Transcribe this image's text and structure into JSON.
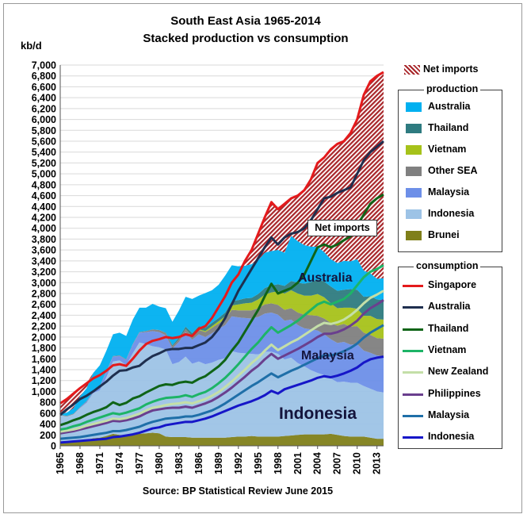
{
  "chart_data": {
    "type": "area",
    "title": "South East Asia 1965-2014",
    "subtitle": "Stacked production vs consumption",
    "ylabel": "kb/d",
    "source": "Source: BP Statistical Review  June 2015",
    "ylim": [
      0,
      7000
    ],
    "yticks": [
      "0",
      "200",
      "400",
      "600",
      "800",
      "1,000",
      "1,200",
      "1,400",
      "1,600",
      "1,800",
      "2,000",
      "2,200",
      "2,400",
      "2,600",
      "2,800",
      "3,000",
      "3,200",
      "3,400",
      "3,600",
      "3,800",
      "4,000",
      "4,200",
      "4,400",
      "4,600",
      "4,800",
      "5,000",
      "5,200",
      "5,400",
      "5,600",
      "5,800",
      "6,000",
      "6,200",
      "6,400",
      "6,600",
      "6,800",
      "7,000"
    ],
    "xticks": [
      "1965",
      "1968",
      "1971",
      "1974",
      "1977",
      "1980",
      "1983",
      "1986",
      "1989",
      "1992",
      "1995",
      "1998",
      "2001",
      "2004",
      "2007",
      "2010",
      "2013"
    ],
    "x": [
      1965,
      1966,
      1967,
      1968,
      1969,
      1970,
      1971,
      1972,
      1973,
      1974,
      1975,
      1976,
      1977,
      1978,
      1979,
      1980,
      1981,
      1982,
      1983,
      1984,
      1985,
      1986,
      1987,
      1988,
      1989,
      1990,
      1991,
      1992,
      1993,
      1994,
      1995,
      1996,
      1997,
      1998,
      1999,
      2000,
      2001,
      2002,
      2003,
      2004,
      2005,
      2006,
      2007,
      2008,
      2009,
      2010,
      2011,
      2012,
      2013,
      2014
    ],
    "net_imports_label": "Net imports",
    "net_imports_color": "#c0504d",
    "production_heading": "production",
    "consumption_heading": "consumption",
    "area_labels": {
      "australia": "Australia",
      "malaysia": "Malaysia",
      "indonesia": "Indonesia"
    },
    "production": [
      {
        "name": "Brunei",
        "color": "#7f7f1a",
        "values": [
          80,
          80,
          80,
          90,
          110,
          140,
          150,
          180,
          220,
          200,
          180,
          200,
          220,
          230,
          240,
          230,
          170,
          160,
          160,
          160,
          150,
          150,
          150,
          150,
          150,
          150,
          160,
          170,
          170,
          180,
          170,
          170,
          170,
          170,
          180,
          190,
          200,
          210,
          210,
          210,
          210,
          220,
          200,
          180,
          170,
          170,
          170,
          150,
          130,
          130
        ]
      },
      {
        "name": "Indonesia",
        "color": "#9dc3e6",
        "values": [
          480,
          460,
          500,
          600,
          680,
          830,
          870,
          1080,
          1330,
          1370,
          1300,
          1500,
          1680,
          1640,
          1590,
          1580,
          1600,
          1340,
          1380,
          1480,
          1360,
          1400,
          1350,
          1380,
          1430,
          1460,
          1580,
          1540,
          1530,
          1510,
          1510,
          1560,
          1560,
          1520,
          1410,
          1430,
          1320,
          1250,
          1180,
          1130,
          1090,
          1020,
          970,
          1000,
          990,
          990,
          930,
          900,
          870,
          850
        ]
      },
      {
        "name": "Malaysia",
        "color": "#6d8fe8",
        "values": [
          0,
          0,
          0,
          10,
          20,
          20,
          70,
          100,
          90,
          80,
          100,
          160,
          180,
          220,
          280,
          280,
          260,
          290,
          370,
          450,
          440,
          500,
          500,
          540,
          570,
          610,
          640,
          650,
          650,
          650,
          690,
          700,
          720,
          720,
          710,
          700,
          700,
          700,
          750,
          780,
          750,
          720,
          720,
          730,
          700,
          710,
          650,
          660,
          660,
          670
        ]
      },
      {
        "name": "Other SEA",
        "color": "#808080",
        "values": [
          10,
          10,
          10,
          10,
          10,
          10,
          10,
          10,
          10,
          10,
          10,
          10,
          10,
          20,
          30,
          40,
          40,
          40,
          50,
          60,
          70,
          80,
          90,
          100,
          100,
          110,
          120,
          130,
          140,
          150,
          160,
          170,
          170,
          180,
          200,
          210,
          230,
          250,
          260,
          270,
          290,
          300,
          320,
          330,
          330,
          330,
          330,
          330,
          320,
          320
        ]
      },
      {
        "name": "Vietnam",
        "color": "#a6c21a",
        "values": [
          0,
          0,
          0,
          0,
          0,
          0,
          0,
          0,
          0,
          0,
          0,
          0,
          0,
          0,
          0,
          0,
          0,
          0,
          0,
          0,
          0,
          10,
          20,
          30,
          40,
          50,
          80,
          110,
          130,
          140,
          160,
          180,
          200,
          250,
          300,
          330,
          350,
          350,
          360,
          400,
          390,
          360,
          320,
          300,
          350,
          320,
          310,
          350,
          350,
          350
        ]
      },
      {
        "name": "Thailand",
        "color": "#2e7b80",
        "values": [
          0,
          0,
          0,
          0,
          0,
          0,
          0,
          0,
          0,
          0,
          0,
          0,
          0,
          0,
          0,
          0,
          10,
          20,
          30,
          40,
          50,
          60,
          60,
          60,
          60,
          70,
          80,
          80,
          90,
          90,
          100,
          120,
          130,
          130,
          140,
          170,
          200,
          220,
          250,
          270,
          290,
          310,
          320,
          330,
          340,
          350,
          350,
          360,
          360,
          360
        ]
      },
      {
        "name": "Australia",
        "color": "#00b0f0",
        "values": [
          10,
          60,
          100,
          200,
          240,
          340,
          380,
          380,
          400,
          420,
          430,
          450,
          450,
          430,
          470,
          430,
          450,
          430,
          500,
          550,
          630,
          560,
          640,
          600,
          610,
          680,
          660,
          620,
          600,
          620,
          620,
          650,
          630,
          630,
          610,
          830,
          760,
          710,
          650,
          600,
          540,
          500,
          510,
          530,
          510,
          560,
          480,
          420,
          380,
          400
        ]
      }
    ],
    "consumption": [
      {
        "name": "Singapore",
        "color": "#e41a1c",
        "values": [
          780,
          860,
          960,
          1060,
          1150,
          1240,
          1300,
          1380,
          1480,
          1500,
          1470,
          1600,
          1750,
          1870,
          1930,
          1960,
          2000,
          1980,
          2000,
          2050,
          2020,
          2150,
          2200,
          2350,
          2550,
          2750,
          3000,
          3150,
          3400,
          3600,
          3900,
          4200,
          4480,
          4350,
          4450,
          4550,
          4600,
          4700,
          4900,
          5200,
          5300,
          5450,
          5550,
          5600,
          5750,
          6000,
          6450,
          6700,
          6800,
          6870
        ]
      },
      {
        "name": "Australia",
        "color": "#1f2f4f",
        "values": [
          570,
          670,
          760,
          860,
          920,
          1000,
          1090,
          1180,
          1290,
          1380,
          1390,
          1440,
          1470,
          1570,
          1650,
          1700,
          1760,
          1780,
          1780,
          1800,
          1800,
          1850,
          1900,
          2000,
          2150,
          2350,
          2600,
          2850,
          3050,
          3250,
          3450,
          3650,
          3830,
          3700,
          3830,
          3900,
          3930,
          4000,
          4150,
          4350,
          4550,
          4580,
          4650,
          4700,
          4750,
          5000,
          5250,
          5400,
          5500,
          5600
        ]
      },
      {
        "name": "Thailand",
        "color": "#0f6417",
        "values": [
          380,
          420,
          470,
          510,
          570,
          620,
          660,
          710,
          800,
          750,
          790,
          870,
          910,
          980,
          1040,
          1100,
          1130,
          1120,
          1160,
          1180,
          1160,
          1230,
          1280,
          1370,
          1460,
          1580,
          1750,
          1900,
          2100,
          2300,
          2500,
          2750,
          2980,
          2800,
          2850,
          2900,
          3000,
          3150,
          3400,
          3650,
          3700,
          3650,
          3700,
          3780,
          3850,
          4050,
          4250,
          4450,
          4550,
          4620
        ]
      },
      {
        "name": "Vietnam",
        "color": "#1db467",
        "values": [
          300,
          320,
          360,
          390,
          440,
          480,
          520,
          560,
          600,
          580,
          610,
          650,
          690,
          760,
          810,
          850,
          880,
          890,
          900,
          930,
          900,
          950,
          990,
          1060,
          1150,
          1250,
          1370,
          1500,
          1640,
          1780,
          1900,
          2050,
          2180,
          2080,
          2150,
          2220,
          2300,
          2400,
          2500,
          2600,
          2650,
          2600,
          2650,
          2700,
          2800,
          2950,
          3100,
          3200,
          3250,
          3320
        ]
      },
      {
        "name": "New Zealand",
        "color": "#c4dfa8",
        "values": [
          260,
          280,
          300,
          330,
          370,
          400,
          430,
          460,
          500,
          490,
          510,
          550,
          590,
          650,
          700,
          720,
          750,
          770,
          780,
          800,
          780,
          820,
          860,
          920,
          990,
          1080,
          1180,
          1290,
          1400,
          1520,
          1620,
          1750,
          1860,
          1760,
          1830,
          1900,
          1960,
          2040,
          2120,
          2200,
          2260,
          2240,
          2270,
          2320,
          2400,
          2500,
          2620,
          2720,
          2780,
          2850
        ]
      },
      {
        "name": "Philippines",
        "color": "#6a3f8e",
        "values": [
          230,
          250,
          270,
          300,
          330,
          360,
          390,
          420,
          460,
          450,
          470,
          500,
          540,
          600,
          650,
          670,
          690,
          700,
          700,
          720,
          700,
          740,
          780,
          830,
          900,
          980,
          1070,
          1170,
          1270,
          1380,
          1470,
          1590,
          1690,
          1600,
          1660,
          1720,
          1780,
          1850,
          1920,
          2000,
          2060,
          2060,
          2090,
          2140,
          2210,
          2300,
          2430,
          2530,
          2600,
          2680
        ]
      },
      {
        "name": "Malaysia",
        "color": "#1f6fa8",
        "values": [
          130,
          140,
          150,
          160,
          180,
          200,
          220,
          240,
          270,
          270,
          290,
          320,
          350,
          400,
          440,
          470,
          500,
          510,
          520,
          540,
          540,
          570,
          610,
          650,
          710,
          780,
          860,
          940,
          1020,
          1100,
          1170,
          1250,
          1330,
          1260,
          1320,
          1380,
          1430,
          1490,
          1550,
          1610,
          1660,
          1660,
          1690,
          1740,
          1800,
          1880,
          1990,
          2080,
          2150,
          2220
        ]
      },
      {
        "name": "Indonesia",
        "color": "#1616c8",
        "values": [
          60,
          70,
          80,
          90,
          100,
          110,
          120,
          130,
          160,
          170,
          190,
          210,
          240,
          280,
          320,
          340,
          380,
          400,
          420,
          440,
          440,
          470,
          500,
          540,
          590,
          640,
          690,
          740,
          780,
          820,
          870,
          930,
          1010,
          960,
          1040,
          1080,
          1120,
          1160,
          1200,
          1250,
          1280,
          1260,
          1290,
          1330,
          1380,
          1440,
          1530,
          1590,
          1620,
          1640
        ]
      }
    ]
  }
}
